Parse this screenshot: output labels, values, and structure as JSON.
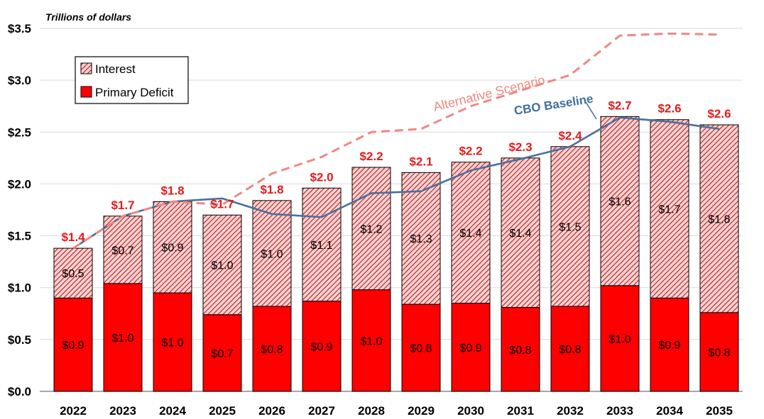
{
  "chart_data": {
    "type": "bar",
    "stacked": true,
    "units_label": "Trillions of dollars",
    "categories": [
      "2022",
      "2023",
      "2024",
      "2025",
      "2026",
      "2027",
      "2028",
      "2029",
      "2030",
      "2031",
      "2032",
      "2033",
      "2034",
      "2035"
    ],
    "ylim": [
      0,
      3.5
    ],
    "yticks": [
      0,
      0.5,
      1.0,
      1.5,
      2.0,
      2.5,
      3.0,
      3.5
    ],
    "ytick_labels": [
      "$0.0",
      "$0.5",
      "$1.0",
      "$1.5",
      "$2.0",
      "$2.5",
      "$3.0",
      "$3.5"
    ],
    "grid": true,
    "legend_position": "top-left",
    "series": [
      {
        "name": "Primary Deficit",
        "color": "#ff0000",
        "pattern": "solid",
        "values": [
          0.9,
          1.04,
          0.95,
          0.74,
          0.82,
          0.87,
          0.98,
          0.84,
          0.85,
          0.81,
          0.82,
          1.02,
          0.9,
          0.76
        ],
        "labels": [
          "$0.9",
          "$1.0",
          "$1.0",
          "$0.7",
          "$0.8",
          "$0.9",
          "$1.0",
          "$0.8",
          "$0.9",
          "$0.8",
          "$0.8",
          "$1.0",
          "$0.9",
          "$0.8"
        ]
      },
      {
        "name": "Interest",
        "color": "#c00000",
        "pattern": "hatched",
        "values": [
          0.48,
          0.65,
          0.88,
          0.96,
          1.02,
          1.09,
          1.18,
          1.27,
          1.36,
          1.44,
          1.54,
          1.63,
          1.72,
          1.81
        ],
        "labels": [
          "$0.5",
          "$0.7",
          "$0.9",
          "$1.0",
          "$1.0",
          "$1.1",
          "$1.2",
          "$1.3",
          "$1.4",
          "$1.4",
          "$1.5",
          "$1.6",
          "$1.7",
          "$1.8"
        ]
      }
    ],
    "totals": [
      1.38,
      1.69,
      1.83,
      1.7,
      1.84,
      1.96,
      2.16,
      2.11,
      2.21,
      2.25,
      2.36,
      2.65,
      2.62,
      2.57
    ],
    "total_labels": [
      "$1.4",
      "$1.7",
      "$1.8",
      "$1.7",
      "$1.8",
      "$2.0",
      "$2.2",
      "$2.1",
      "$2.2",
      "$2.3",
      "$2.4",
      "$2.7",
      "$2.6",
      "$2.6"
    ],
    "lines": [
      {
        "name": "CBO Baseline",
        "color": "#4a6f9c",
        "style": "solid",
        "values": [
          1.38,
          1.69,
          1.83,
          1.86,
          1.71,
          1.68,
          1.91,
          1.93,
          2.13,
          2.24,
          2.36,
          2.64,
          2.6,
          2.53
        ]
      },
      {
        "name": "Alternative Scenario",
        "color": "#ee8883",
        "style": "dashed",
        "values": [
          1.38,
          1.69,
          1.83,
          1.8,
          2.1,
          2.26,
          2.5,
          2.53,
          2.75,
          2.9,
          3.05,
          3.43,
          3.45,
          3.44
        ]
      }
    ],
    "annotations": {
      "alternative": "Alternative Scenario",
      "cbo": "CBO Baseline"
    },
    "legend": [
      {
        "name": "Interest",
        "pattern": "hatched"
      },
      {
        "name": "Primary Deficit",
        "pattern": "solid"
      }
    ]
  }
}
